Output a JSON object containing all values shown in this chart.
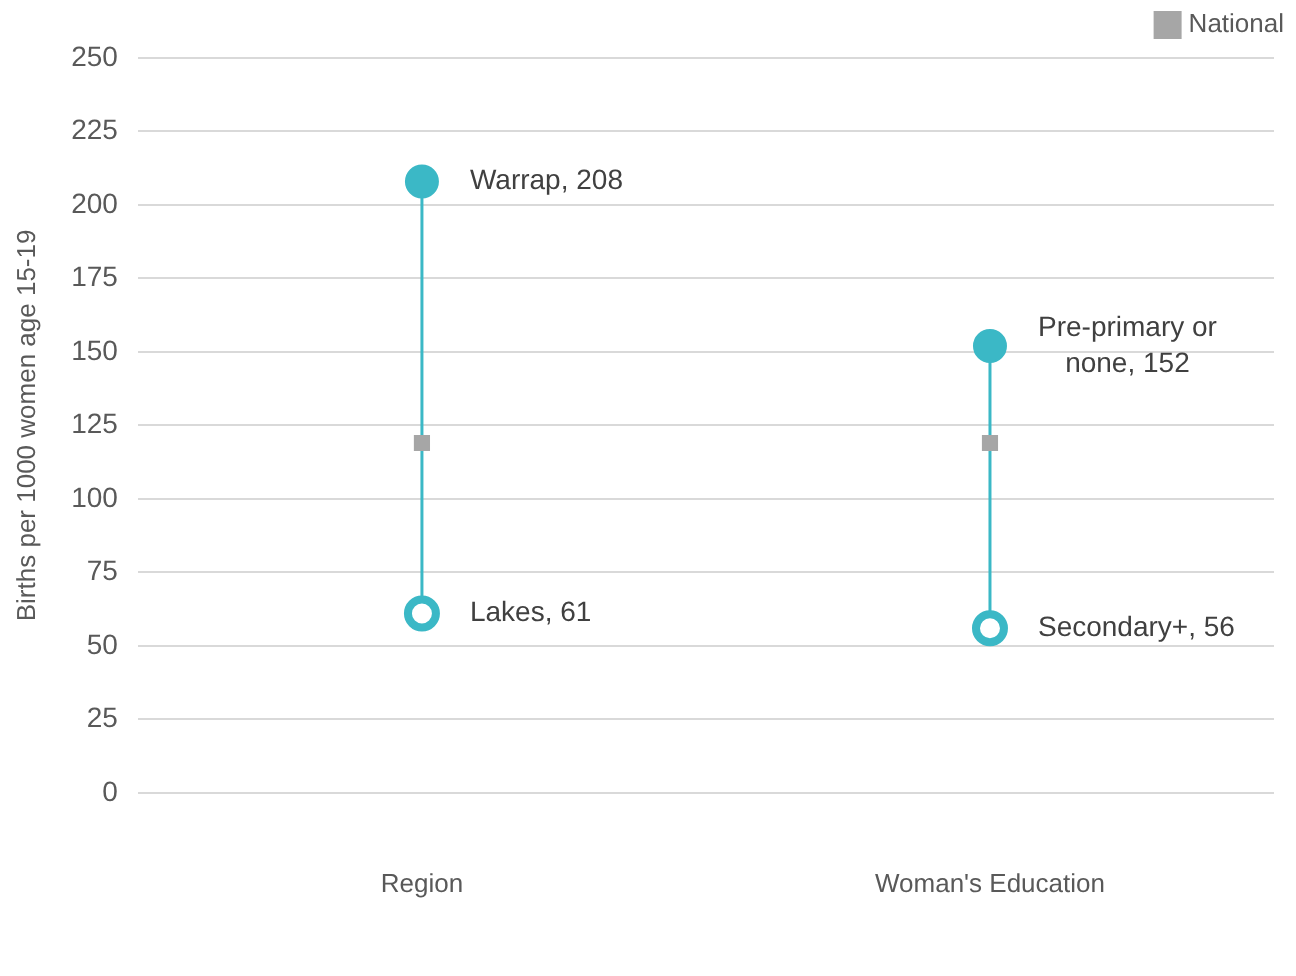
{
  "chart_data": {
    "type": "scatter",
    "ylabel": "Births per 1000 women age 15-19",
    "categories": [
      "Region",
      "Woman's Education"
    ],
    "series": [
      {
        "color": "#3bb8c6",
        "marker": "circle",
        "values": [
          208,
          152
        ],
        "value_labels": [
          "Warrap, 208",
          "Pre-primary or\nnone, 152"
        ]
      },
      {
        "color": "#3bb8c6",
        "marker": "circle",
        "values": [
          61,
          56
        ],
        "value_labels": [
          "Lakes, 61",
          "Secondary+, 56"
        ]
      },
      {
        "name": "National",
        "color": "#a6a6a6",
        "marker": "square",
        "values": [
          119,
          119
        ]
      }
    ],
    "ylim": [
      0,
      250
    ],
    "yticks": [
      0,
      25,
      50,
      75,
      100,
      125,
      150,
      175,
      200,
      225,
      250
    ],
    "grid": "y",
    "legend": "top right"
  }
}
